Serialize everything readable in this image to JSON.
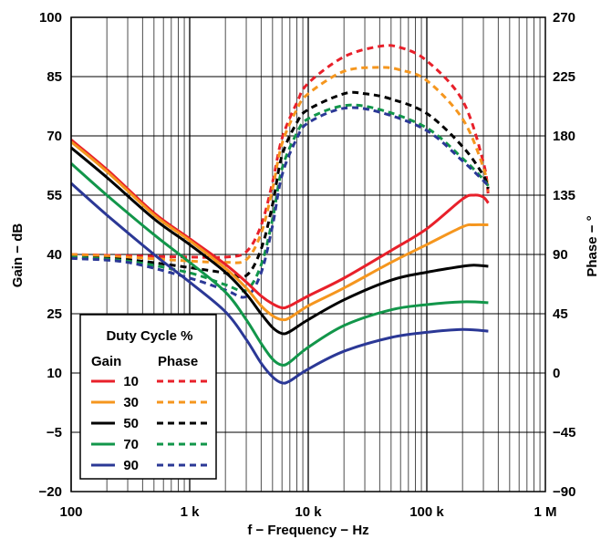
{
  "chart_data": {
    "type": "line",
    "xlabel": "f − Frequency − Hz",
    "ylabel_left": "Gain − dB",
    "ylabel_right": "Phase − °",
    "x_scale": "log",
    "xlim": [
      100,
      1000000
    ],
    "ylim_left": [
      -20,
      100
    ],
    "ylim_right": [
      -90,
      270
    ],
    "x_ticks": [
      {
        "value": 100,
        "label": "100"
      },
      {
        "value": 1000,
        "label": "1 k"
      },
      {
        "value": 10000,
        "label": "10 k"
      },
      {
        "value": 100000,
        "label": "100 k"
      },
      {
        "value": 1000000,
        "label": "1 M"
      }
    ],
    "y_ticks_left": [
      {
        "value": 100,
        "label": "100"
      },
      {
        "value": 85,
        "label": "85"
      },
      {
        "value": 70,
        "label": "70"
      },
      {
        "value": 55,
        "label": "55"
      },
      {
        "value": 40,
        "label": "40"
      },
      {
        "value": 25,
        "label": "25"
      },
      {
        "value": 10,
        "label": "10"
      },
      {
        "value": -5,
        "label": "−5"
      },
      {
        "value": -20,
        "label": "−20"
      }
    ],
    "y_ticks_right": [
      {
        "value": 270,
        "label": "270"
      },
      {
        "value": 225,
        "label": "225"
      },
      {
        "value": 180,
        "label": "180"
      },
      {
        "value": 135,
        "label": "135"
      },
      {
        "value": 90,
        "label": "90"
      },
      {
        "value": 45,
        "label": "45"
      },
      {
        "value": 0,
        "label": "0"
      },
      {
        "value": -45,
        "label": "−45"
      },
      {
        "value": -90,
        "label": "−90"
      }
    ],
    "grid": true,
    "legend": {
      "placement": "bottom-left",
      "title": "Duty Cycle %",
      "col_gain": "Gain",
      "col_phase": "Phase",
      "entries": [
        {
          "label": "10",
          "color": "#e8202a"
        },
        {
          "label": "30",
          "color": "#f5961e"
        },
        {
          "label": "50",
          "color": "#000000"
        },
        {
          "label": "70",
          "color": "#12964a"
        },
        {
          "label": "90",
          "color": "#2b3896"
        }
      ]
    },
    "series": [
      {
        "label": "10",
        "kind": "gain",
        "axis": "left",
        "color": "#e8202a",
        "points": [
          [
            100,
            69
          ],
          [
            200,
            61.5
          ],
          [
            500,
            50.5
          ],
          [
            1000,
            44
          ],
          [
            2000,
            37.5
          ],
          [
            3000,
            33
          ],
          [
            4000,
            29.5
          ],
          [
            5000,
            27.5
          ],
          [
            6000,
            26.5
          ],
          [
            7000,
            27
          ],
          [
            10000,
            29.5
          ],
          [
            20000,
            34
          ],
          [
            50000,
            41
          ],
          [
            100000,
            46.5
          ],
          [
            200000,
            54
          ],
          [
            250000,
            55
          ],
          [
            300000,
            54.5
          ],
          [
            330000,
            53
          ]
        ]
      },
      {
        "label": "30",
        "kind": "gain",
        "axis": "left",
        "color": "#f5961e",
        "points": [
          [
            100,
            68.5
          ],
          [
            200,
            61
          ],
          [
            500,
            50
          ],
          [
            1000,
            43.5
          ],
          [
            2000,
            36.5
          ],
          [
            3000,
            31.5
          ],
          [
            4000,
            27
          ],
          [
            5000,
            24.5
          ],
          [
            6000,
            23.5
          ],
          [
            7000,
            24
          ],
          [
            10000,
            27
          ],
          [
            20000,
            31.5
          ],
          [
            50000,
            38
          ],
          [
            100000,
            42.5
          ],
          [
            200000,
            47
          ],
          [
            250000,
            47.5
          ],
          [
            330000,
            47.5
          ]
        ]
      },
      {
        "label": "50",
        "kind": "gain",
        "axis": "left",
        "color": "#000000",
        "points": [
          [
            100,
            67
          ],
          [
            200,
            59.5
          ],
          [
            500,
            49
          ],
          [
            1000,
            42.5
          ],
          [
            2000,
            35.5
          ],
          [
            3000,
            30
          ],
          [
            4000,
            25
          ],
          [
            5000,
            21.5
          ],
          [
            6000,
            20
          ],
          [
            7000,
            20.5
          ],
          [
            10000,
            23.5
          ],
          [
            20000,
            28.5
          ],
          [
            50000,
            33.5
          ],
          [
            100000,
            35.5
          ],
          [
            200000,
            37
          ],
          [
            250000,
            37.3
          ],
          [
            330000,
            37
          ]
        ]
      },
      {
        "label": "70",
        "kind": "gain",
        "axis": "left",
        "color": "#12964a",
        "points": [
          [
            100,
            63
          ],
          [
            200,
            55
          ],
          [
            500,
            45
          ],
          [
            1000,
            38
          ],
          [
            2000,
            30.5
          ],
          [
            3000,
            23.5
          ],
          [
            4000,
            17.5
          ],
          [
            5000,
            13.5
          ],
          [
            6000,
            12
          ],
          [
            7000,
            12.8
          ],
          [
            10000,
            16.5
          ],
          [
            20000,
            22
          ],
          [
            50000,
            26
          ],
          [
            100000,
            27.3
          ],
          [
            200000,
            28
          ],
          [
            330000,
            27.8
          ]
        ]
      },
      {
        "label": "90",
        "kind": "gain",
        "axis": "left",
        "color": "#2b3896",
        "points": [
          [
            100,
            58
          ],
          [
            200,
            50
          ],
          [
            500,
            40
          ],
          [
            1000,
            33
          ],
          [
            2000,
            25.5
          ],
          [
            3000,
            18.5
          ],
          [
            4000,
            12.5
          ],
          [
            5000,
            9
          ],
          [
            6000,
            7.5
          ],
          [
            7000,
            8
          ],
          [
            10000,
            11
          ],
          [
            20000,
            15.5
          ],
          [
            50000,
            19
          ],
          [
            100000,
            20.3
          ],
          [
            200000,
            21
          ],
          [
            330000,
            20.6
          ]
        ]
      },
      {
        "label": "10",
        "kind": "phase",
        "axis": "right",
        "color": "#e8202a",
        "points": [
          [
            100,
            90
          ],
          [
            300,
            89
          ],
          [
            1000,
            88
          ],
          [
            2000,
            88
          ],
          [
            3000,
            92
          ],
          [
            4000,
            112
          ],
          [
            5000,
            145
          ],
          [
            6000,
            178
          ],
          [
            8000,
            205
          ],
          [
            10000,
            220
          ],
          [
            20000,
            240
          ],
          [
            40000,
            248
          ],
          [
            60000,
            247
          ],
          [
            100000,
            237
          ],
          [
            200000,
            207
          ],
          [
            300000,
            160
          ],
          [
            330000,
            135
          ]
        ]
      },
      {
        "label": "30",
        "kind": "phase",
        "axis": "right",
        "color": "#f5961e",
        "points": [
          [
            100,
            90
          ],
          [
            300,
            88
          ],
          [
            1000,
            85
          ],
          [
            2000,
            84
          ],
          [
            3000,
            86
          ],
          [
            4000,
            106
          ],
          [
            5000,
            140
          ],
          [
            6000,
            174
          ],
          [
            8000,
            200
          ],
          [
            10000,
            212
          ],
          [
            20000,
            229
          ],
          [
            40000,
            232
          ],
          [
            60000,
            230
          ],
          [
            100000,
            222
          ],
          [
            200000,
            193
          ],
          [
            300000,
            156
          ],
          [
            330000,
            138
          ]
        ]
      },
      {
        "label": "50",
        "kind": "phase",
        "axis": "right",
        "color": "#000000",
        "points": [
          [
            100,
            88
          ],
          [
            300,
            86
          ],
          [
            1000,
            80
          ],
          [
            2000,
            76
          ],
          [
            3000,
            74
          ],
          [
            4000,
            94
          ],
          [
            5000,
            128
          ],
          [
            6000,
            165
          ],
          [
            8000,
            190
          ],
          [
            10000,
            200
          ],
          [
            20000,
            212
          ],
          [
            30000,
            212
          ],
          [
            50000,
            208
          ],
          [
            100000,
            197
          ],
          [
            200000,
            172
          ],
          [
            300000,
            150
          ],
          [
            330000,
            140
          ]
        ]
      },
      {
        "label": "70",
        "kind": "phase",
        "axis": "right",
        "color": "#12964a",
        "points": [
          [
            100,
            88
          ],
          [
            300,
            85
          ],
          [
            1000,
            76
          ],
          [
            2000,
            67
          ],
          [
            3000,
            63
          ],
          [
            4000,
            82
          ],
          [
            5000,
            117
          ],
          [
            6000,
            155
          ],
          [
            8000,
            182
          ],
          [
            10000,
            193
          ],
          [
            20000,
            203
          ],
          [
            40000,
            200
          ],
          [
            100000,
            186
          ],
          [
            200000,
            163
          ],
          [
            300000,
            147
          ],
          [
            330000,
            142
          ]
        ]
      },
      {
        "label": "90",
        "kind": "phase",
        "axis": "right",
        "color": "#2b3896",
        "points": [
          [
            100,
            87
          ],
          [
            300,
            84
          ],
          [
            1000,
            72
          ],
          [
            2000,
            63
          ],
          [
            3000,
            58
          ],
          [
            4000,
            76
          ],
          [
            5000,
            112
          ],
          [
            6000,
            150
          ],
          [
            8000,
            178
          ],
          [
            10000,
            190
          ],
          [
            20000,
            201
          ],
          [
            40000,
            198
          ],
          [
            100000,
            184
          ],
          [
            200000,
            161
          ],
          [
            300000,
            146
          ],
          [
            330000,
            142
          ]
        ]
      }
    ]
  }
}
